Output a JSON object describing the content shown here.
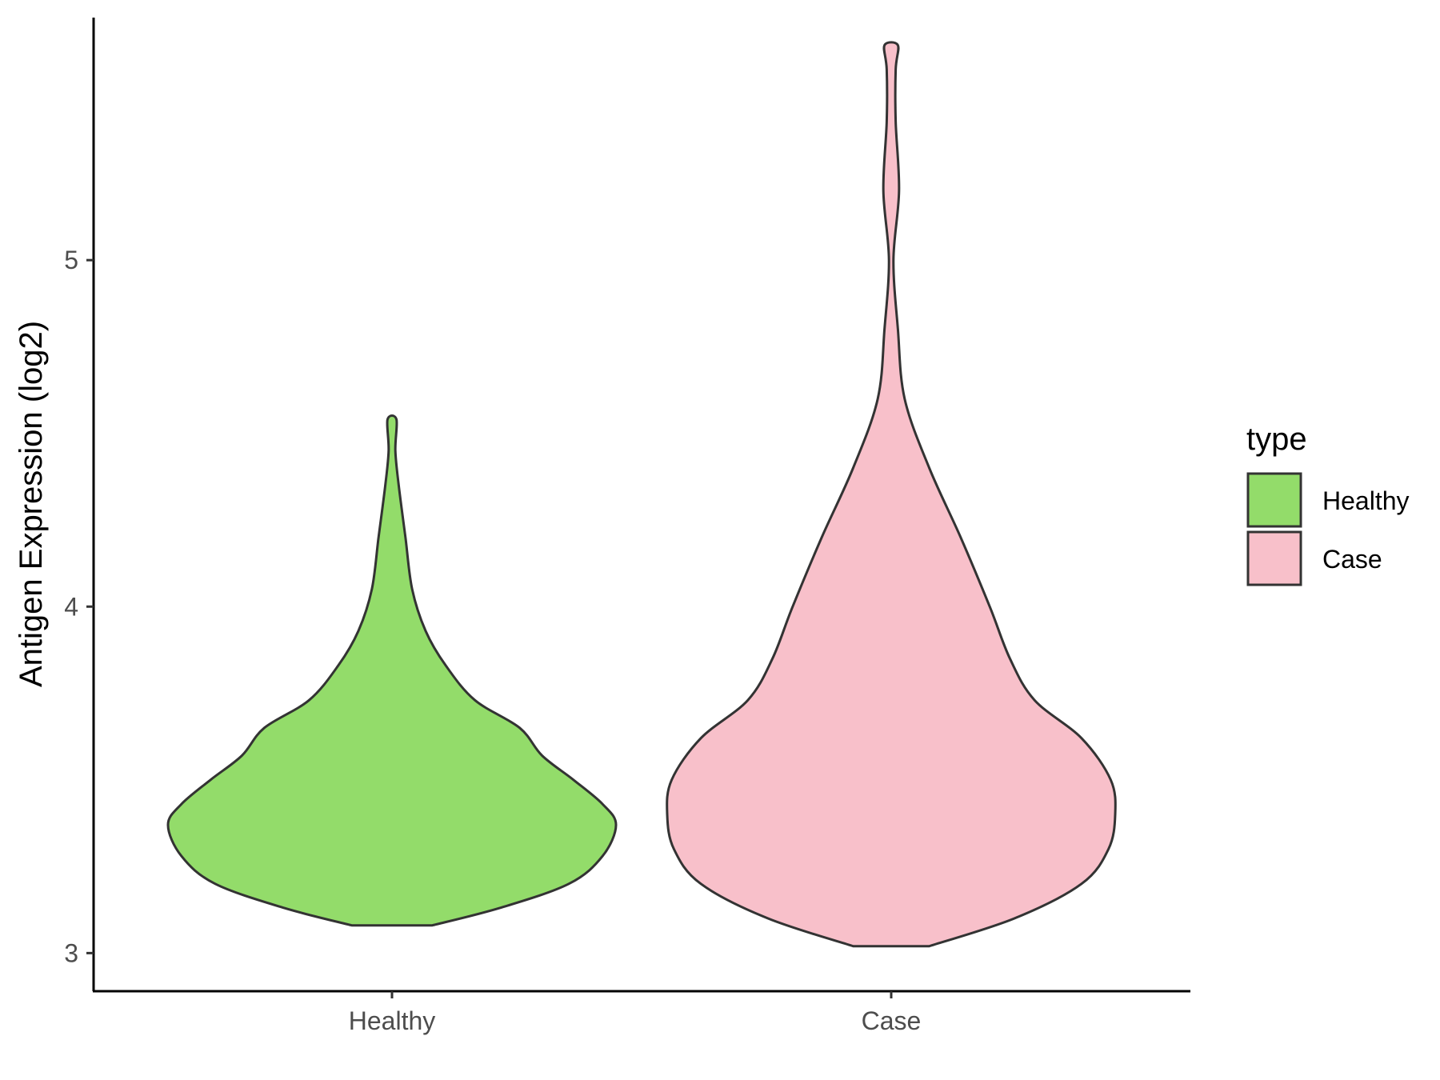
{
  "chart_data": {
    "type": "violin",
    "title": "",
    "xlabel": "",
    "ylabel": "Antigen Expression (log2)",
    "categories": [
      "Healthy",
      "Case"
    ],
    "ylim": [
      2.89,
      5.7
    ],
    "yticks": [
      3,
      4,
      5
    ],
    "grid": false,
    "legend": {
      "title": "type",
      "position": "right",
      "entries": [
        {
          "label": "Healthy",
          "color": "#93dc6a"
        },
        {
          "label": "Case",
          "color": "#f8c0ca"
        }
      ]
    },
    "series": [
      {
        "name": "Healthy",
        "color": "#93dc6a",
        "min": 3.08,
        "max": 4.54,
        "profile": [
          [
            3.08,
            0.18
          ],
          [
            3.13,
            0.48
          ],
          [
            3.2,
            0.79
          ],
          [
            3.28,
            0.94
          ],
          [
            3.37,
            1.0
          ],
          [
            3.43,
            0.94
          ],
          [
            3.5,
            0.81
          ],
          [
            3.57,
            0.67
          ],
          [
            3.65,
            0.57
          ],
          [
            3.73,
            0.37
          ],
          [
            3.83,
            0.24
          ],
          [
            3.93,
            0.15
          ],
          [
            4.05,
            0.09
          ],
          [
            4.2,
            0.06
          ],
          [
            4.35,
            0.03
          ],
          [
            4.45,
            0.015
          ],
          [
            4.54,
            0.02
          ]
        ]
      },
      {
        "name": "Case",
        "color": "#f8c0ca",
        "min": 3.02,
        "max": 5.62,
        "profile": [
          [
            3.02,
            0.17
          ],
          [
            3.1,
            0.55
          ],
          [
            3.2,
            0.85
          ],
          [
            3.3,
            0.97
          ],
          [
            3.4,
            1.0
          ],
          [
            3.5,
            0.98
          ],
          [
            3.62,
            0.85
          ],
          [
            3.73,
            0.64
          ],
          [
            3.85,
            0.53
          ],
          [
            4.0,
            0.44
          ],
          [
            4.2,
            0.31
          ],
          [
            4.4,
            0.17
          ],
          [
            4.6,
            0.06
          ],
          [
            4.8,
            0.03
          ],
          [
            5.0,
            0.01
          ],
          [
            5.2,
            0.035
          ],
          [
            5.4,
            0.02
          ],
          [
            5.55,
            0.02
          ],
          [
            5.62,
            0.03
          ]
        ]
      }
    ]
  }
}
